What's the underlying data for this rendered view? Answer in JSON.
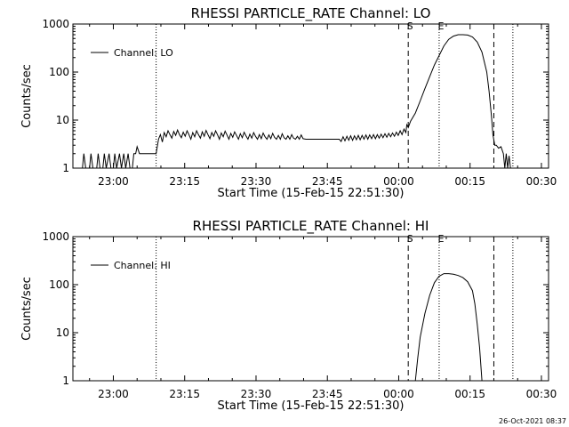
{
  "page": {
    "timestamp": "26-Oct-2021 08:37"
  },
  "chart_data": [
    {
      "type": "line",
      "title": "RHESSI PARTICLE_RATE Channel: LO",
      "xlabel": "Start Time (15-Feb-15 22:51:30)",
      "ylabel": "Counts/sec",
      "x_unit": "minutes after 22:51:30",
      "xlim": [
        0,
        100
      ],
      "ylim": [
        1,
        1000
      ],
      "yscale": "log",
      "x_ticks": [
        {
          "label": "23:00",
          "value": 8.5
        },
        {
          "label": "23:15",
          "value": 23.5
        },
        {
          "label": "23:30",
          "value": 38.5
        },
        {
          "label": "23:45",
          "value": 53.5
        },
        {
          "label": "00:00",
          "value": 68.5
        },
        {
          "label": "00:15",
          "value": 83.5
        },
        {
          "label": "00:30",
          "value": 98.5
        }
      ],
      "y_ticks": [
        {
          "label": "1",
          "value": 1
        },
        {
          "label": "10",
          "value": 10
        },
        {
          "label": "100",
          "value": 100
        },
        {
          "label": "1000",
          "value": 1000
        }
      ],
      "legend": {
        "position": "top-left",
        "entries": [
          "Channel: LO"
        ]
      },
      "grid": false,
      "markers": [
        {
          "label": "",
          "x": 17.5,
          "style": "dotted"
        },
        {
          "label": "S",
          "x": 70.5,
          "style": "dashed"
        },
        {
          "label": "E",
          "x": 77.0,
          "style": "dotted"
        },
        {
          "label": "",
          "x": 88.5,
          "style": "dashed"
        },
        {
          "label": "",
          "x": 92.5,
          "style": "dotted"
        }
      ],
      "series": [
        {
          "name": "Channel: LO",
          "points": [
            [
              0.0,
              1.0
            ],
            [
              2.0,
              1.0
            ],
            [
              2.3,
              2.0
            ],
            [
              2.7,
              1.0
            ],
            [
              3.5,
              1.0
            ],
            [
              3.8,
              2.0
            ],
            [
              4.2,
              1.0
            ],
            [
              5.0,
              1.0
            ],
            [
              5.3,
              2.0
            ],
            [
              5.7,
              1.0
            ],
            [
              6.3,
              1.0
            ],
            [
              6.6,
              2.0
            ],
            [
              7.0,
              1.0
            ],
            [
              7.6,
              2.0
            ],
            [
              8.0,
              1.0
            ],
            [
              8.5,
              1.0
            ],
            [
              8.8,
              2.0
            ],
            [
              9.2,
              1.0
            ],
            [
              9.8,
              2.0
            ],
            [
              10.2,
              1.0
            ],
            [
              10.7,
              2.0
            ],
            [
              11.1,
              1.0
            ],
            [
              11.6,
              2.0
            ],
            [
              12.0,
              1.0
            ],
            [
              12.5,
              1.0
            ],
            [
              12.8,
              2.0
            ],
            [
              13.2,
              2.0
            ],
            [
              13.5,
              2.8
            ],
            [
              14.0,
              2.0
            ],
            [
              17.5,
              2.0
            ],
            [
              18.0,
              4.0
            ],
            [
              18.4,
              5.0
            ],
            [
              18.8,
              3.5
            ],
            [
              19.2,
              5.5
            ],
            [
              19.6,
              4.5
            ],
            [
              20.0,
              6.0
            ],
            [
              20.4,
              5.0
            ],
            [
              20.8,
              4.2
            ],
            [
              21.2,
              5.8
            ],
            [
              21.6,
              4.8
            ],
            [
              22.0,
              6.2
            ],
            [
              22.4,
              5.0
            ],
            [
              22.8,
              4.3
            ],
            [
              23.2,
              5.6
            ],
            [
              23.6,
              4.6
            ],
            [
              24.0,
              6.0
            ],
            [
              24.4,
              5.0
            ],
            [
              24.8,
              4.0
            ],
            [
              25.2,
              5.5
            ],
            [
              25.6,
              4.5
            ],
            [
              26.0,
              6.0
            ],
            [
              26.4,
              5.0
            ],
            [
              26.8,
              4.2
            ],
            [
              27.2,
              5.7
            ],
            [
              27.6,
              4.6
            ],
            [
              28.0,
              6.1
            ],
            [
              28.4,
              5.0
            ],
            [
              28.8,
              4.1
            ],
            [
              29.2,
              5.5
            ],
            [
              29.6,
              4.6
            ],
            [
              30.0,
              6.0
            ],
            [
              30.4,
              5.0
            ],
            [
              30.8,
              4.0
            ],
            [
              31.2,
              5.4
            ],
            [
              31.6,
              4.5
            ],
            [
              32.0,
              5.9
            ],
            [
              32.4,
              4.9
            ],
            [
              32.8,
              4.0
            ],
            [
              33.2,
              5.3
            ],
            [
              33.6,
              4.4
            ],
            [
              34.0,
              5.7
            ],
            [
              34.4,
              4.8
            ],
            [
              34.8,
              4.0
            ],
            [
              35.2,
              5.2
            ],
            [
              35.6,
              4.3
            ],
            [
              36.0,
              5.6
            ],
            [
              36.4,
              4.7
            ],
            [
              36.8,
              4.0
            ],
            [
              37.2,
              5.1
            ],
            [
              37.6,
              4.2
            ],
            [
              38.0,
              5.5
            ],
            [
              38.4,
              4.6
            ],
            [
              38.8,
              4.0
            ],
            [
              39.2,
              5.0
            ],
            [
              39.6,
              4.1
            ],
            [
              40.0,
              5.4
            ],
            [
              40.4,
              4.5
            ],
            [
              40.8,
              4.0
            ],
            [
              41.2,
              4.9
            ],
            [
              41.6,
              4.1
            ],
            [
              42.0,
              5.3
            ],
            [
              42.4,
              4.4
            ],
            [
              42.8,
              4.0
            ],
            [
              43.2,
              4.8
            ],
            [
              43.6,
              4.0
            ],
            [
              44.0,
              5.2
            ],
            [
              44.4,
              4.3
            ],
            [
              44.8,
              4.0
            ],
            [
              45.2,
              4.7
            ],
            [
              45.6,
              4.0
            ],
            [
              46.0,
              5.0
            ],
            [
              46.4,
              4.2
            ],
            [
              46.8,
              4.0
            ],
            [
              47.2,
              4.6
            ],
            [
              47.6,
              4.0
            ],
            [
              48.0,
              4.9
            ],
            [
              48.4,
              4.1
            ],
            [
              49.0,
              4.0
            ],
            [
              56.0,
              4.0
            ],
            [
              56.4,
              3.6
            ],
            [
              56.8,
              4.5
            ],
            [
              57.2,
              3.7
            ],
            [
              57.6,
              4.6
            ],
            [
              58.0,
              3.8
            ],
            [
              58.4,
              4.7
            ],
            [
              58.8,
              3.8
            ],
            [
              59.2,
              4.7
            ],
            [
              59.6,
              3.9
            ],
            [
              60.0,
              4.8
            ],
            [
              60.4,
              3.9
            ],
            [
              60.8,
              4.8
            ],
            [
              61.2,
              4.0
            ],
            [
              61.6,
              4.9
            ],
            [
              62.0,
              4.0
            ],
            [
              62.4,
              4.9
            ],
            [
              62.8,
              4.1
            ],
            [
              63.2,
              5.0
            ],
            [
              63.6,
              4.1
            ],
            [
              64.0,
              5.0
            ],
            [
              64.4,
              4.2
            ],
            [
              64.8,
              5.1
            ],
            [
              65.2,
              4.3
            ],
            [
              65.6,
              5.2
            ],
            [
              66.0,
              4.4
            ],
            [
              66.4,
              5.3
            ],
            [
              66.8,
              4.5
            ],
            [
              67.2,
              5.4
            ],
            [
              67.6,
              4.6
            ],
            [
              68.0,
              5.6
            ],
            [
              68.4,
              4.8
            ],
            [
              68.8,
              6.0
            ],
            [
              69.2,
              5.0
            ],
            [
              69.6,
              6.5
            ],
            [
              70.0,
              5.5
            ],
            [
              70.2,
              8.0
            ],
            [
              70.5,
              7.0
            ],
            [
              71.0,
              9.5
            ],
            [
              72.0,
              14.0
            ],
            [
              73.0,
              25.0
            ],
            [
              74.0,
              45.0
            ],
            [
              75.0,
              80.0
            ],
            [
              76.0,
              140.0
            ],
            [
              77.0,
              220.0
            ],
            [
              78.0,
              350.0
            ],
            [
              79.0,
              480.0
            ],
            [
              80.0,
              560.0
            ],
            [
              81.0,
              600.0
            ],
            [
              82.0,
              600.0
            ],
            [
              83.0,
              590.0
            ],
            [
              84.0,
              540.0
            ],
            [
              85.0,
              420.0
            ],
            [
              86.0,
              260.0
            ],
            [
              87.0,
              100.0
            ],
            [
              87.5,
              40.0
            ],
            [
              88.0,
              12.0
            ],
            [
              88.3,
              5.0
            ],
            [
              88.7,
              3.0
            ],
            [
              89.0,
              3.0
            ],
            [
              89.5,
              2.6
            ],
            [
              90.0,
              2.8
            ],
            [
              90.5,
              2.0
            ],
            [
              90.8,
              1.0
            ],
            [
              91.1,
              2.0
            ],
            [
              91.4,
              1.0
            ],
            [
              91.7,
              1.8
            ],
            [
              92.0,
              1.0
            ]
          ]
        }
      ]
    },
    {
      "type": "line",
      "title": "RHESSI PARTICLE_RATE Channel: HI",
      "xlabel": "Start Time (15-Feb-15 22:51:30)",
      "ylabel": "Counts/sec",
      "x_unit": "minutes after 22:51:30",
      "xlim": [
        0,
        100
      ],
      "ylim": [
        1,
        1000
      ],
      "yscale": "log",
      "x_ticks": [
        {
          "label": "23:00",
          "value": 8.5
        },
        {
          "label": "23:15",
          "value": 23.5
        },
        {
          "label": "23:30",
          "value": 38.5
        },
        {
          "label": "23:45",
          "value": 53.5
        },
        {
          "label": "00:00",
          "value": 68.5
        },
        {
          "label": "00:15",
          "value": 83.5
        },
        {
          "label": "00:30",
          "value": 98.5
        }
      ],
      "y_ticks": [
        {
          "label": "1",
          "value": 1
        },
        {
          "label": "10",
          "value": 10
        },
        {
          "label": "100",
          "value": 100
        },
        {
          "label": "1000",
          "value": 1000
        }
      ],
      "legend": {
        "position": "top-left",
        "entries": [
          "Channel: HI"
        ]
      },
      "grid": false,
      "markers": [
        {
          "label": "",
          "x": 17.5,
          "style": "dotted"
        },
        {
          "label": "S",
          "x": 70.5,
          "style": "dashed"
        },
        {
          "label": "E",
          "x": 77.0,
          "style": "dotted"
        },
        {
          "label": "",
          "x": 88.5,
          "style": "dashed"
        },
        {
          "label": "",
          "x": 92.5,
          "style": "dotted"
        }
      ],
      "series": [
        {
          "name": "Channel: HI",
          "points": [
            [
              72.0,
              1.0
            ],
            [
              72.5,
              3.0
            ],
            [
              73.0,
              8.0
            ],
            [
              74.0,
              25.0
            ],
            [
              75.0,
              60.0
            ],
            [
              76.0,
              110.0
            ],
            [
              77.0,
              150.0
            ],
            [
              78.0,
              170.0
            ],
            [
              79.0,
              170.0
            ],
            [
              80.0,
              165.0
            ],
            [
              81.0,
              155.0
            ],
            [
              82.0,
              140.0
            ],
            [
              83.0,
              115.0
            ],
            [
              84.0,
              75.0
            ],
            [
              84.5,
              40.0
            ],
            [
              85.0,
              15.0
            ],
            [
              85.5,
              5.0
            ],
            [
              86.0,
              1.0
            ]
          ]
        }
      ]
    }
  ]
}
